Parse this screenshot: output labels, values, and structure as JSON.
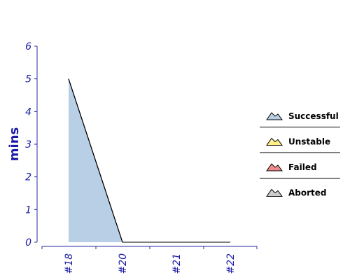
{
  "chart_data": {
    "type": "area",
    "ylabel": "mins",
    "categories": [
      "#18",
      "#20",
      "#21",
      "#22"
    ],
    "ylim": [
      0,
      6
    ],
    "yticks": [
      0,
      1,
      2,
      3,
      4,
      5,
      6
    ],
    "legend_position": "right",
    "series": [
      {
        "name": "Successful",
        "color": "#b8cfe6",
        "values": [
          5,
          0,
          0,
          0
        ]
      },
      {
        "name": "Unstable",
        "color": "#fff08a",
        "values": [
          0,
          0,
          0,
          0
        ]
      },
      {
        "name": "Failed",
        "color": "#ef8b8b",
        "values": [
          0,
          0,
          0,
          0
        ]
      },
      {
        "name": "Aborted",
        "color": "#cccccc",
        "values": [
          0,
          0,
          0,
          0
        ]
      }
    ]
  }
}
